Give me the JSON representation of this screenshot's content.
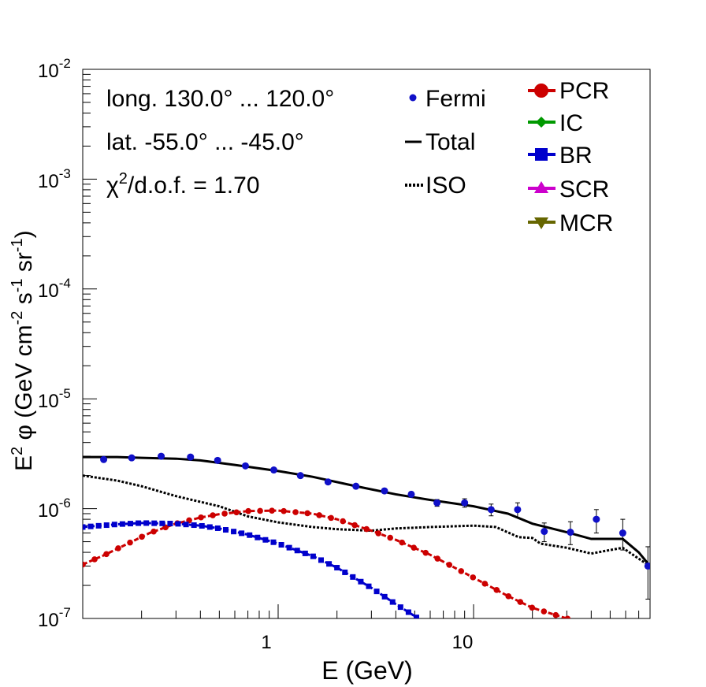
{
  "chart_data": {
    "type": "line",
    "xlabel": "E (GeV)",
    "ylabel": {
      "prefix": "E",
      "sup1": "2",
      "phi": " φ (GeV cm",
      "sup2": "-2",
      "mid1": " s",
      "sup3": "-1",
      "mid2": " sr",
      "sup4": "-1",
      "suffix": ")"
    },
    "xscale": "log",
    "yscale": "log",
    "xlim": [
      0.1,
      80
    ],
    "ylim": [
      1e-07,
      0.01
    ],
    "x_ticks": [
      {
        "value": 1,
        "label": "1"
      },
      {
        "value": 10,
        "label": "10"
      }
    ],
    "y_ticks": [
      {
        "value": 1e-07,
        "base": "10",
        "exp": "-7"
      },
      {
        "value": 1e-06,
        "base": "10",
        "exp": "-6"
      },
      {
        "value": 1e-05,
        "base": "10",
        "exp": "-5"
      },
      {
        "value": 0.0001,
        "base": "10",
        "exp": "-4"
      },
      {
        "value": 0.001,
        "base": "10",
        "exp": "-3"
      },
      {
        "value": 0.01,
        "base": "10",
        "exp": "-2"
      }
    ],
    "annotations": {
      "longitude": "long. 130.0° ... 120.0°",
      "latitude": "lat. -55.0° ... -45.0°",
      "chi2_symbol": "χ",
      "chi2_exp": "2",
      "chi2_rest": "/d.o.f. = 1.70"
    },
    "legend_left": [
      {
        "name": "Fermi",
        "style": "marker",
        "color": "#1010c8"
      },
      {
        "name": "Total",
        "style": "solid",
        "color": "#000000"
      },
      {
        "name": "ISO",
        "style": "dotted",
        "color": "#000000"
      }
    ],
    "legend_right": [
      {
        "name": "PCR",
        "marker": "circle",
        "color": "#cc0000"
      },
      {
        "name": "IC",
        "marker": "diamond",
        "color": "#009900"
      },
      {
        "name": "BR",
        "marker": "square",
        "color": "#0000cc"
      },
      {
        "name": "SCR",
        "marker": "triangle-up",
        "color": "#cc00cc"
      },
      {
        "name": "MCR",
        "marker": "triangle-down",
        "color": "#666600"
      }
    ],
    "series": [
      {
        "name": "Fermi",
        "kind": "points",
        "color": "#1010c8",
        "x": [
          0.128,
          0.178,
          0.252,
          0.356,
          0.49,
          0.68,
          0.95,
          1.3,
          1.8,
          2.5,
          3.5,
          4.8,
          6.5,
          9.0,
          12.3,
          16.8,
          23.0,
          31.3,
          42.5,
          58.0,
          78.0
        ],
        "y": [
          2.8e-06,
          2.9e-06,
          3e-06,
          2.95e-06,
          2.75e-06,
          2.45e-06,
          2.25e-06,
          2e-06,
          1.75e-06,
          1.6e-06,
          1.45e-06,
          1.35e-06,
          1.13e-06,
          1.13e-06,
          9.8e-07,
          9.8e-07,
          6.2e-07,
          6.1e-07,
          8e-07,
          6e-07,
          3e-07
        ],
        "yerr_low": [
          1e-07,
          1e-07,
          1e-07,
          1e-07,
          1e-07,
          8e-08,
          8e-08,
          7e-08,
          7e-08,
          7e-08,
          7e-08,
          7e-08,
          8e-08,
          1e-07,
          1.2e-07,
          1.5e-07,
          1.2e-07,
          1.4e-07,
          2e-07,
          1.8e-07,
          1.5e-07
        ],
        "yerr_high": [
          1e-07,
          1e-07,
          1e-07,
          1e-07,
          1e-07,
          8e-08,
          8e-08,
          7e-08,
          7e-08,
          7e-08,
          7e-08,
          7e-08,
          8e-08,
          1e-07,
          1.2e-07,
          1.5e-07,
          1.2e-07,
          1.5e-07,
          1.8e-07,
          2e-07,
          1.5e-07
        ]
      },
      {
        "name": "Total",
        "kind": "line",
        "dash": "solid",
        "color": "#000000",
        "x": [
          0.1,
          0.15,
          0.2,
          0.3,
          0.4,
          0.6,
          1.0,
          1.5,
          2.5,
          4.0,
          6.0,
          10.0,
          15.0,
          20.0,
          30.0,
          40.0,
          50.0,
          58.0,
          70.0,
          80.0
        ],
        "y": [
          2.95e-06,
          2.95e-06,
          2.9e-06,
          2.85e-06,
          2.75e-06,
          2.5e-06,
          2.2e-06,
          1.95e-06,
          1.6e-06,
          1.35e-06,
          1.2e-06,
          1.05e-06,
          9e-07,
          7.3e-07,
          6.1e-07,
          5.3e-07,
          5.3e-07,
          5.3e-07,
          4e-07,
          3e-07
        ]
      },
      {
        "name": "ISO",
        "kind": "line",
        "dash": "dotted",
        "color": "#000000",
        "x": [
          0.1,
          0.15,
          0.2,
          0.3,
          0.5,
          0.7,
          1.0,
          1.5,
          2.0,
          3.0,
          4.0,
          6.0,
          10.0,
          13.0,
          17.0,
          20.0,
          22.0,
          30.0,
          40.0,
          50.0,
          58.0,
          70.0,
          80.0
        ],
        "y": [
          2e-06,
          1.8e-06,
          1.6e-06,
          1.3e-06,
          1.05e-06,
          8.5e-07,
          7.5e-07,
          6.8e-07,
          6.5e-07,
          6.3e-07,
          6.6e-07,
          6.8e-07,
          7e-07,
          6.8e-07,
          5.5e-07,
          5.4e-07,
          4.8e-07,
          4.4e-07,
          3.9e-07,
          4.2e-07,
          4.4e-07,
          3.5e-07,
          3e-07
        ]
      },
      {
        "name": "PCR",
        "kind": "line-markers",
        "dash": "dashed",
        "color": "#cc0000",
        "marker": "circle",
        "x": [
          0.1,
          0.13,
          0.17,
          0.22,
          0.3,
          0.4,
          0.5,
          0.7,
          1.0,
          1.5,
          2.0,
          3.0,
          4.0,
          6.0,
          8.0,
          10.0,
          15.0,
          20.0,
          30.0,
          40.0
        ],
        "y": [
          3.1e-07,
          3.8e-07,
          4.8e-07,
          6e-07,
          7.3e-07,
          8.3e-07,
          8.9e-07,
          9.5e-07,
          9.6e-07,
          9e-07,
          8e-07,
          6.3e-07,
          5.2e-07,
          3.8e-07,
          2.9e-07,
          2.35e-07,
          1.6e-07,
          1.25e-07,
          1e-07,
          8.6e-08
        ]
      },
      {
        "name": "BR",
        "kind": "line-markers",
        "dash": "dashed",
        "color": "#0000cc",
        "marker": "square",
        "x": [
          0.1,
          0.15,
          0.2,
          0.3,
          0.4,
          0.5,
          0.7,
          1.0,
          1.5,
          2.0,
          3.0,
          4.0,
          5.0,
          5.6
        ],
        "y": [
          6.8e-07,
          7.2e-07,
          7.4e-07,
          7.3e-07,
          7e-07,
          6.6e-07,
          5.8e-07,
          4.8e-07,
          3.7e-07,
          2.9e-07,
          1.9e-07,
          1.35e-07,
          1.05e-07,
          9e-08
        ]
      }
    ]
  }
}
